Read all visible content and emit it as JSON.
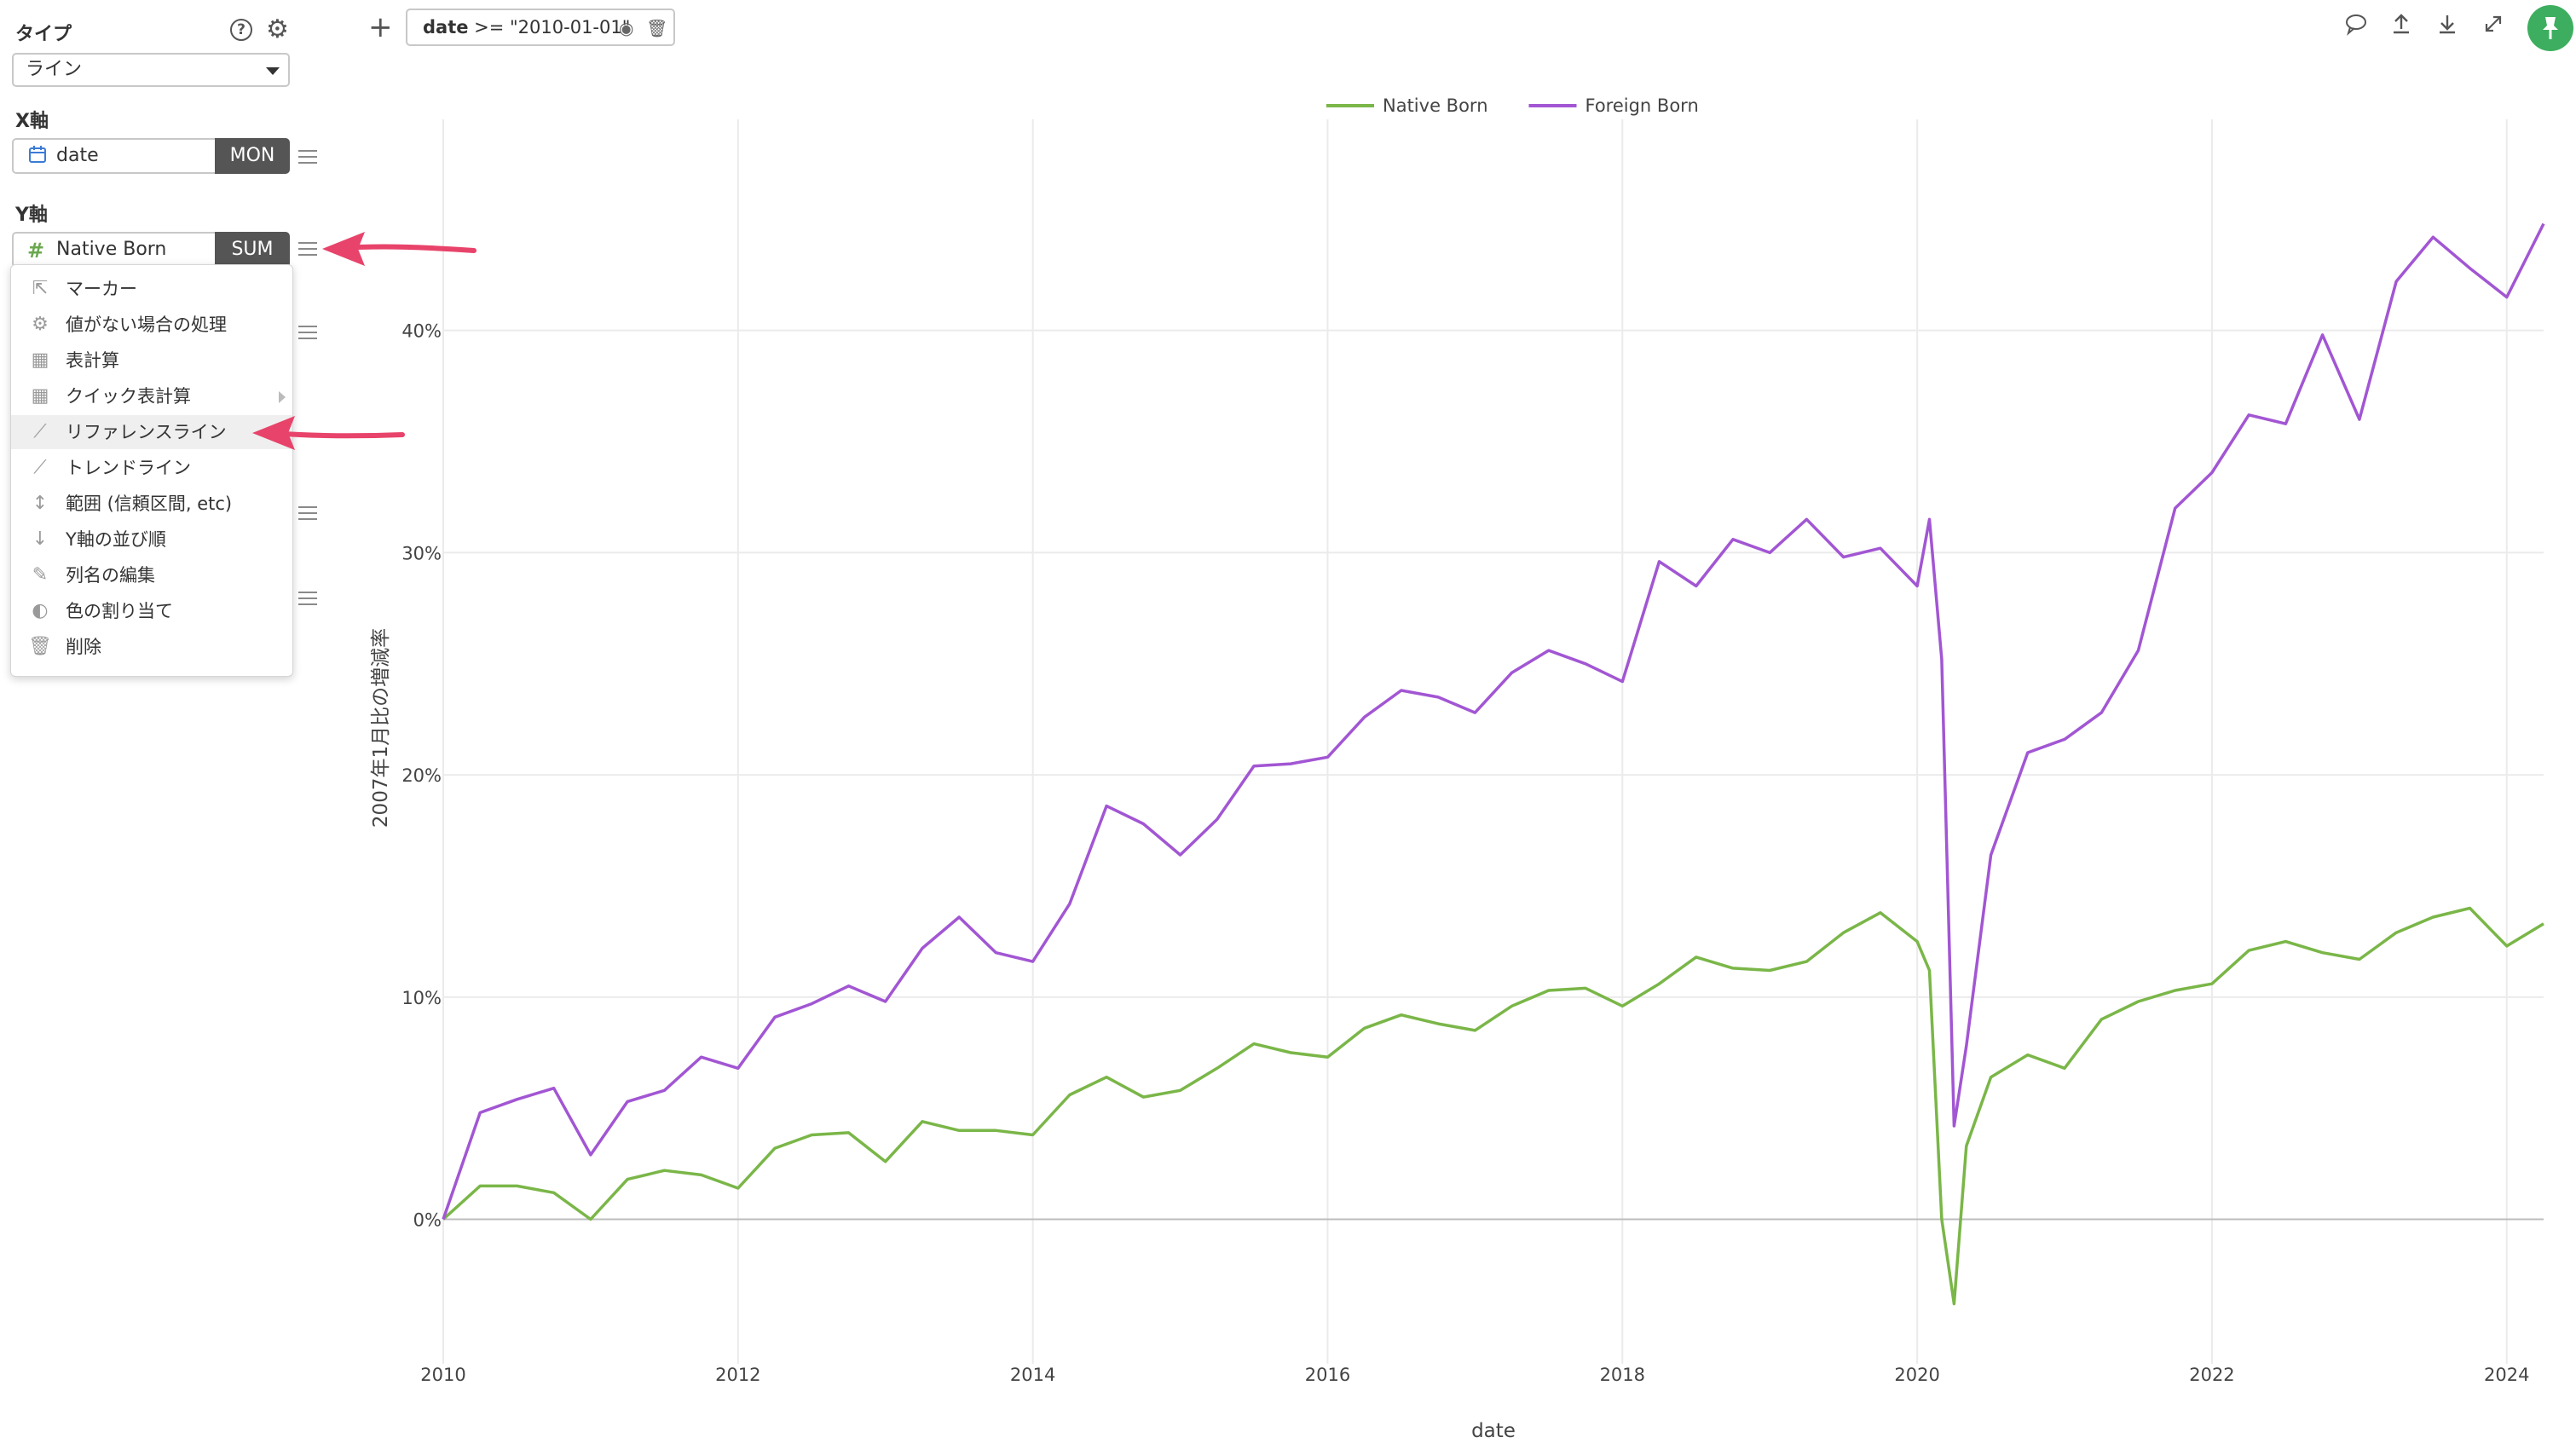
{
  "sidebar": {
    "type_label": "タイプ",
    "help_icon": "?",
    "type_value": "ライン",
    "x_label": "X軸",
    "x_field": {
      "name": "date",
      "agg": "MON",
      "icon": "calendar-icon"
    },
    "y_label": "Y軸",
    "y_field": {
      "name": "Native Born",
      "agg": "SUM",
      "icon": "#"
    }
  },
  "menu": {
    "items": [
      {
        "label": "マーカー",
        "icon": "pointer-icon"
      },
      {
        "label": "値がない場合の処理",
        "icon": "gear-icon"
      },
      {
        "label": "表計算",
        "icon": "table-icon"
      },
      {
        "label": "クイック表計算",
        "icon": "table-icon",
        "has_submenu": true
      },
      {
        "label": "リファレンスライン",
        "icon": "reference-line-icon",
        "active": true
      },
      {
        "label": "トレンドライン",
        "icon": "trend-line-icon"
      },
      {
        "label": "範囲 (信頼区間, etc)",
        "icon": "range-icon"
      },
      {
        "label": "Y軸の並び順",
        "icon": "sort-icon"
      },
      {
        "label": "列名の編集",
        "icon": "edit-icon"
      },
      {
        "label": "色の割り当て",
        "icon": "palette-icon"
      },
      {
        "label": "削除",
        "icon": "trash-icon"
      }
    ]
  },
  "toolbar": {
    "filter_field": "date",
    "filter_expr": " >= \"2010-01-01\"",
    "icons": [
      "comment-icon",
      "upload-icon",
      "download-icon",
      "expand-icon",
      "pin-icon"
    ]
  },
  "chart_data": {
    "type": "line",
    "xlabel": "date",
    "ylabel": "2007年1月比の増減率",
    "x_ticks": [
      "2010",
      "2012",
      "2014",
      "2016",
      "2018",
      "2020",
      "2022",
      "2024"
    ],
    "y_ticks": [
      "0%",
      "10%",
      "20%",
      "30%",
      "40%"
    ],
    "xlim": [
      "2010-01",
      "2024-04"
    ],
    "ylim": [
      -6.5,
      49.5
    ],
    "legend_position": "top-center",
    "grid": true,
    "x": [
      "2010-01",
      "2010-04",
      "2010-07",
      "2010-10",
      "2011-01",
      "2011-04",
      "2011-07",
      "2011-10",
      "2012-01",
      "2012-04",
      "2012-07",
      "2012-10",
      "2013-01",
      "2013-04",
      "2013-07",
      "2013-10",
      "2014-01",
      "2014-04",
      "2014-07",
      "2014-10",
      "2015-01",
      "2015-04",
      "2015-07",
      "2015-10",
      "2016-01",
      "2016-04",
      "2016-07",
      "2016-10",
      "2017-01",
      "2017-04",
      "2017-07",
      "2017-10",
      "2018-01",
      "2018-04",
      "2018-07",
      "2018-10",
      "2019-01",
      "2019-04",
      "2019-07",
      "2019-10",
      "2020-01",
      "2020-02",
      "2020-03",
      "2020-04",
      "2020-05",
      "2020-07",
      "2020-10",
      "2021-01",
      "2021-04",
      "2021-07",
      "2021-10",
      "2022-01",
      "2022-04",
      "2022-07",
      "2022-10",
      "2023-01",
      "2023-04",
      "2023-07",
      "2023-10",
      "2024-01",
      "2024-04"
    ],
    "series": [
      {
        "name": "Native Born",
        "color": "#7ab648",
        "values": [
          0,
          1.5,
          1.5,
          1.2,
          0,
          1.8,
          2.2,
          2.0,
          1.4,
          3.2,
          3.8,
          3.9,
          2.6,
          4.4,
          4.0,
          4.0,
          3.8,
          5.6,
          6.4,
          5.5,
          5.8,
          6.8,
          7.9,
          7.5,
          7.3,
          8.6,
          9.2,
          8.8,
          8.5,
          9.6,
          10.3,
          10.4,
          9.6,
          10.6,
          11.8,
          11.3,
          11.2,
          11.6,
          12.9,
          13.8,
          12.5,
          11.2,
          0,
          -3.8,
          3.3,
          6.4,
          7.4,
          6.8,
          9.0,
          9.8,
          10.3,
          10.6,
          12.1,
          12.5,
          12.0,
          11.7,
          12.9,
          13.6,
          14.0,
          12.3,
          13.3
        ]
      },
      {
        "name": "Foreign Born",
        "color": "#a256d3",
        "values": [
          0,
          4.8,
          5.4,
          5.9,
          2.9,
          5.3,
          5.8,
          7.3,
          6.8,
          9.1,
          9.7,
          10.5,
          9.8,
          12.2,
          13.6,
          12.0,
          11.6,
          14.2,
          18.6,
          17.8,
          16.4,
          18.0,
          20.4,
          20.5,
          20.8,
          22.6,
          23.8,
          23.5,
          22.8,
          24.6,
          25.6,
          25.0,
          24.2,
          29.6,
          28.5,
          30.6,
          30.0,
          31.5,
          29.8,
          30.2,
          28.5,
          31.5,
          25.2,
          4.2,
          7.8,
          16.4,
          21.0,
          21.6,
          22.8,
          25.6,
          32.0,
          33.6,
          36.2,
          35.8,
          39.8,
          36.0,
          42.2,
          44.2,
          42.8,
          41.5,
          44.8
        ]
      }
    ]
  }
}
